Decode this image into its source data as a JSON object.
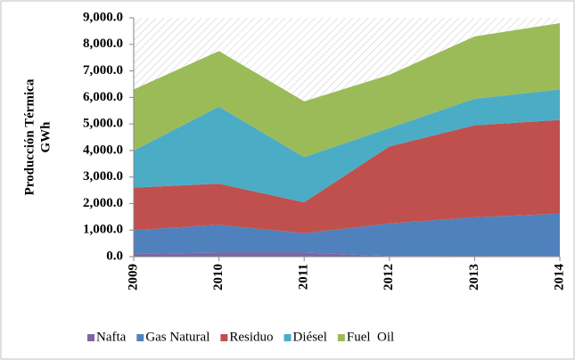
{
  "chart_data": {
    "type": "stacked_area",
    "ylabel": [
      "Producción Térmica",
      "GWh"
    ],
    "categories": [
      "2009",
      "2010",
      "2011",
      "2012",
      "2013",
      "2014"
    ],
    "series": [
      {
        "name": "Nafta",
        "color": "#8064a2",
        "values": [
          100,
          150,
          150,
          20,
          30,
          20
        ]
      },
      {
        "name": "Gas Natural",
        "color": "#4f81bd",
        "values": [
          900,
          1050,
          730,
          1230,
          1450,
          1600
        ]
      },
      {
        "name": "Residuo",
        "color": "#c0504d",
        "values": [
          1600,
          1550,
          1170,
          2900,
          3470,
          3530
        ]
      },
      {
        "name": "Diésel",
        "color": "#4bacc6",
        "values": [
          1400,
          2900,
          1700,
          700,
          1000,
          1150
        ]
      },
      {
        "name": "Fuel  Oil",
        "color": "#9bbb59",
        "values": [
          2300,
          2100,
          2100,
          2000,
          2350,
          2500
        ]
      }
    ],
    "ylim": [
      0,
      9000
    ],
    "yticks": [
      {
        "value": 0,
        "label": "0.0"
      },
      {
        "value": 1000,
        "label": "1,000.0"
      },
      {
        "value": 2000,
        "label": "2,000.0"
      },
      {
        "value": 3000,
        "label": "3,000.0"
      },
      {
        "value": 4000,
        "label": "4,000.0"
      },
      {
        "value": 5000,
        "label": "5,000.0"
      },
      {
        "value": 6000,
        "label": "6,000.0"
      },
      {
        "value": 7000,
        "label": "7,000.0"
      },
      {
        "value": 8000,
        "label": "8,000.0"
      },
      {
        "value": 9000,
        "label": "9,000.0"
      }
    ],
    "legend": "bottom"
  }
}
